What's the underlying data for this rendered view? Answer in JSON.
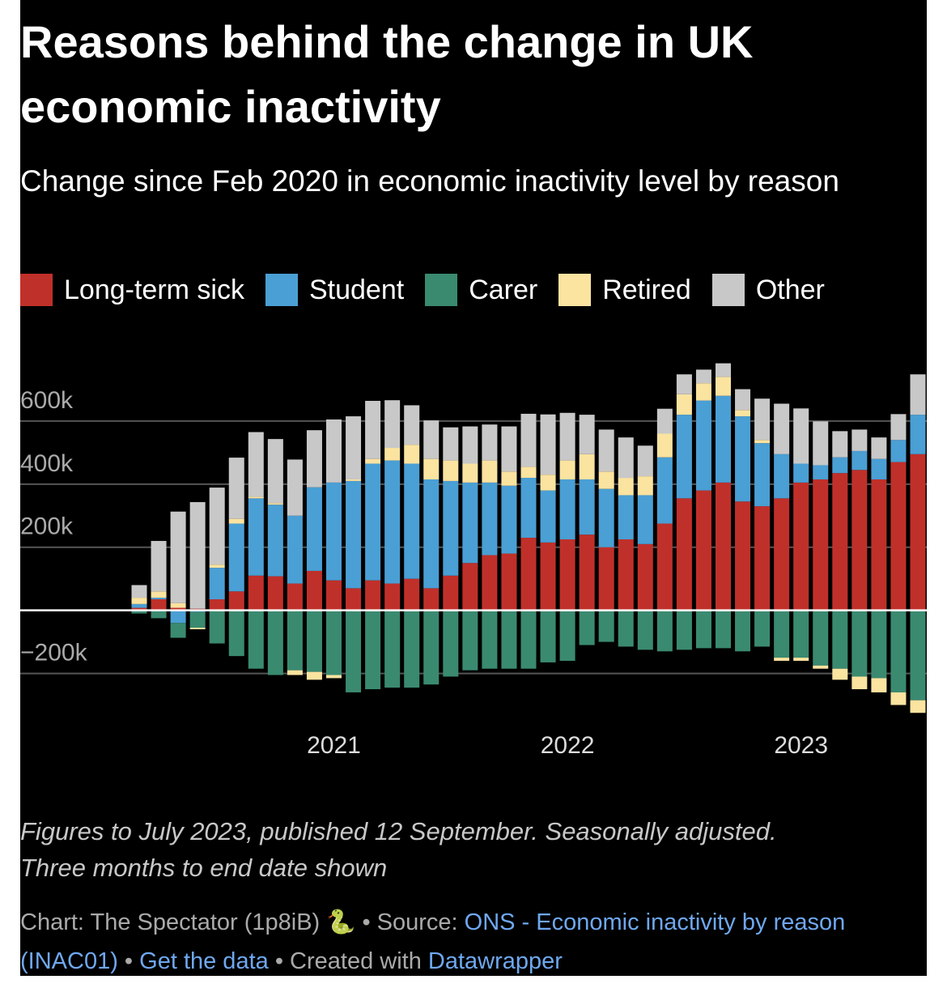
{
  "chart_data": {
    "type": "bar",
    "stacked": true,
    "title": "Reasons behind the change in UK economic inactivity",
    "subtitle": "Change since Feb 2020 in economic inactivity level by reason",
    "categories": [
      null,
      null,
      null,
      null,
      null,
      null,
      null,
      null,
      null,
      null,
      "2021",
      null,
      null,
      null,
      null,
      null,
      null,
      null,
      null,
      null,
      null,
      null,
      "2022",
      null,
      null,
      null,
      null,
      null,
      null,
      null,
      null,
      null,
      null,
      null,
      "2023",
      null,
      null,
      null,
      null,
      null,
      null
    ],
    "series": [
      {
        "name": "Long-term sick",
        "color": "#c0302a",
        "values": [
          8000,
          35000,
          8000,
          5000,
          35000,
          60000,
          110000,
          108000,
          85000,
          125000,
          95000,
          70000,
          95000,
          85000,
          100000,
          70000,
          110000,
          150000,
          175000,
          180000,
          230000,
          215000,
          225000,
          240000,
          200000,
          225000,
          210000,
          275000,
          355000,
          380000,
          405000,
          345000,
          330000,
          355000,
          405000,
          415000,
          435000,
          445000,
          415000,
          470000,
          495000
        ]
      },
      {
        "name": "Student",
        "color": "#4a9fd4",
        "values": [
          12000,
          5000,
          -40000,
          -5000,
          100000,
          215000,
          245000,
          227000,
          215000,
          265000,
          310000,
          340000,
          370000,
          390000,
          365000,
          345000,
          300000,
          255000,
          230000,
          215000,
          190000,
          165000,
          190000,
          175000,
          185000,
          140000,
          155000,
          210000,
          265000,
          285000,
          275000,
          270000,
          200000,
          140000,
          60000,
          45000,
          50000,
          60000,
          65000,
          70000,
          125000
        ]
      },
      {
        "name": "Carer",
        "color": "#3a8a70",
        "values": [
          -10000,
          -25000,
          -47000,
          -50000,
          -105000,
          -145000,
          -185000,
          -205000,
          -190000,
          -195000,
          -205000,
          -260000,
          -250000,
          -245000,
          -245000,
          -235000,
          -210000,
          -190000,
          -185000,
          -185000,
          -185000,
          -165000,
          -160000,
          -110000,
          -100000,
          -115000,
          -125000,
          -130000,
          -125000,
          -120000,
          -120000,
          -130000,
          -115000,
          -150000,
          -150000,
          -175000,
          -185000,
          -210000,
          -215000,
          -260000,
          -285000
        ]
      },
      {
        "name": "Retired",
        "color": "#fbe3a0",
        "values": [
          20000,
          20000,
          15000,
          -5000,
          10000,
          15000,
          5000,
          5000,
          -15000,
          -25000,
          -10000,
          5000,
          15000,
          40000,
          60000,
          65000,
          65000,
          60000,
          70000,
          45000,
          35000,
          50000,
          60000,
          80000,
          55000,
          55000,
          60000,
          75000,
          65000,
          55000,
          60000,
          20000,
          10000,
          -10000,
          -10000,
          -10000,
          -35000,
          -40000,
          -45000,
          -40000,
          -40000
        ]
      },
      {
        "name": "Other",
        "color": "#c8c8c8",
        "values": [
          40000,
          160000,
          290000,
          338000,
          244000,
          194000,
          205000,
          203000,
          178000,
          181000,
          200000,
          200000,
          184000,
          151000,
          125000,
          122000,
          105000,
          118000,
          114000,
          143000,
          168000,
          191000,
          151000,
          125000,
          133000,
          128000,
          97000,
          79000,
          63000,
          43000,
          43000,
          66000,
          131000,
          160000,
          175000,
          139000,
          83000,
          68000,
          68000,
          82000,
          128000
        ]
      }
    ],
    "ylim": [
      -350000,
      800000
    ],
    "yticks": [
      {
        "value": -200000,
        "label": "−200k"
      },
      0,
      {
        "value": 200000,
        "label": "200k"
      },
      {
        "value": 400000,
        "label": "400k"
      },
      {
        "value": 600000,
        "label": "600k"
      }
    ],
    "grid": true,
    "legend": "top"
  },
  "notes": [
    "Figures to July 2023, published 12 September. Seasonally adjusted.",
    "Three months to end date shown"
  ],
  "footer": {
    "credit": "Chart: The Spectator (1p8iB) 🐍",
    "source_label": "• Source:",
    "source": "ONS - Economic inactivity by reason (INAC01)",
    "sep": "•",
    "get_data": "Get the data",
    "created_with": "• Created with",
    "tool": "Datawrapper"
  }
}
